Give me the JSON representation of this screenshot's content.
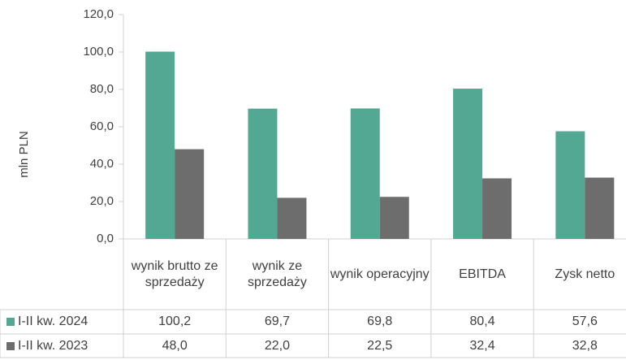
{
  "chart_data": {
    "type": "bar",
    "y_label": "mln PLN",
    "categories": [
      "wynik brutto ze sprzedaży",
      "wynik ze sprzedaży",
      "wynik operacyjny",
      "EBITDA",
      "Zysk netto"
    ],
    "series": [
      {
        "name": "I-II kw. 2024",
        "color": "#52a893",
        "values": [
          100.2,
          69.7,
          69.8,
          80.4,
          57.6
        ],
        "value_labels": [
          "100,2",
          "69,7",
          "69,8",
          "80,4",
          "57,6"
        ]
      },
      {
        "name": "I-II kw. 2023",
        "color": "#6d6d6d",
        "values": [
          48.0,
          22.0,
          22.5,
          32.4,
          32.8
        ],
        "value_labels": [
          "48,0",
          "22,0",
          "22,5",
          "32,4",
          "32,8"
        ]
      }
    ],
    "ylim": [
      0,
      120
    ],
    "yticks": [
      {
        "value": 0,
        "label": "0,0"
      },
      {
        "value": 20,
        "label": "20,0"
      },
      {
        "value": 40,
        "label": "40,0"
      },
      {
        "value": 60,
        "label": "60,0"
      },
      {
        "value": 80,
        "label": "80,0"
      },
      {
        "value": 100,
        "label": "100,0"
      },
      {
        "value": 120,
        "label": "120,0"
      }
    ],
    "grid": false
  }
}
